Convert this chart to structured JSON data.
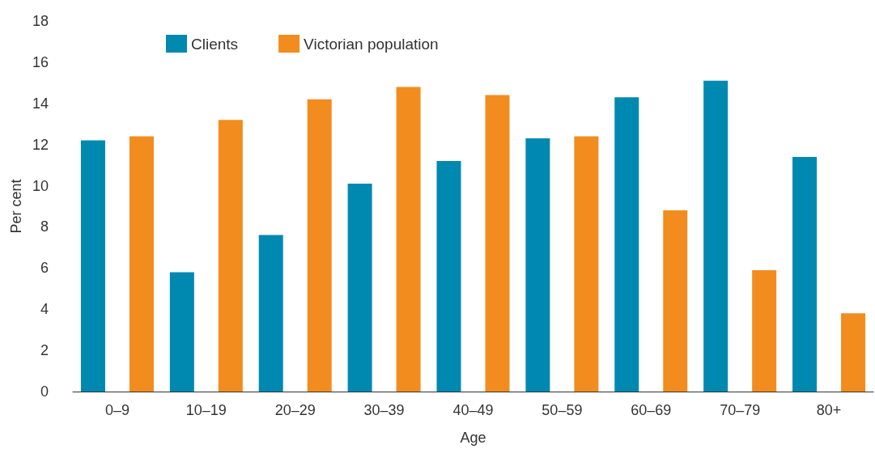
{
  "chart_data": {
    "type": "bar",
    "xlabel": "Age",
    "ylabel": "Per cent",
    "categories": [
      "0–9",
      "10–19",
      "20–29",
      "30–39",
      "40–49",
      "50–59",
      "60–69",
      "70–79",
      "80+"
    ],
    "series": [
      {
        "name": "Clients",
        "color": "#0089b0",
        "values": [
          12.2,
          5.8,
          7.6,
          10.1,
          11.2,
          12.3,
          14.3,
          15.1,
          11.4
        ]
      },
      {
        "name": "Victorian population",
        "color": "#f28c1e",
        "values": [
          12.4,
          13.2,
          14.2,
          14.8,
          14.4,
          12.4,
          8.8,
          5.9,
          3.8
        ]
      }
    ],
    "ylim": [
      0,
      18
    ],
    "yticks": [
      0,
      2,
      4,
      6,
      8,
      10,
      12,
      14,
      16,
      18
    ],
    "grid": false,
    "legend": "top left"
  }
}
